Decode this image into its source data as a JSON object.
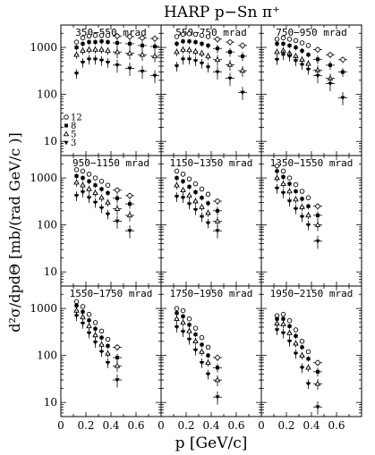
{
  "chart_data": {
    "type": "scatter",
    "title": "HARP p−Sn π⁺",
    "xlabel": "p [GeV/c]",
    "ylabel": "d²σ/dpdΘ [mb/(rad GeV/c )]",
    "x_ticks": [
      "0",
      "0.2",
      "0.4",
      "0.6"
    ],
    "xlim": [
      0,
      0.8
    ],
    "ylim": [
      5,
      3000
    ],
    "yscale": "log",
    "y_ticks": [
      "10",
      "100",
      "1000"
    ],
    "legend": {
      "placement": "left",
      "entries": [
        {
          "label": "12",
          "marker": "circle-open"
        },
        {
          "label": "8",
          "marker": "square-filled"
        },
        {
          "label": "5",
          "marker": "triangle-open"
        },
        {
          "label": "3",
          "marker": "triangle-down-filled"
        }
      ]
    },
    "panels": [
      {
        "label": "350−550 mrad",
        "series": [
          {
            "name": "12",
            "x": [
              0.125,
              0.175,
              0.225,
              0.275,
              0.325,
              0.375,
              0.45,
              0.55,
              0.65,
              0.75
            ],
            "y": [
              1300,
              1600,
              1750,
              1800,
              1800,
              1800,
              1750,
              1700,
              1600,
              1550
            ]
          },
          {
            "name": "8",
            "x": [
              0.125,
              0.175,
              0.225,
              0.275,
              0.325,
              0.375,
              0.45,
              0.55,
              0.65,
              0.75
            ],
            "y": [
              1000,
              1200,
              1300,
              1300,
              1350,
              1300,
              1250,
              1200,
              1100,
              1050
            ]
          },
          {
            "name": "5",
            "x": [
              0.125,
              0.175,
              0.225,
              0.275,
              0.325,
              0.375,
              0.45,
              0.55,
              0.65,
              0.75
            ],
            "y": [
              700,
              850,
              900,
              900,
              900,
              850,
              800,
              750,
              700,
              650
            ]
          },
          {
            "name": "3",
            "x": [
              0.125,
              0.175,
              0.225,
              0.275,
              0.325,
              0.375,
              0.45,
              0.55,
              0.65,
              0.75
            ],
            "y": [
              280,
              480,
              560,
              560,
              530,
              480,
              420,
              360,
              310,
              250
            ]
          }
        ]
      },
      {
        "label": "550−750 mrad",
        "series": [
          {
            "name": "12",
            "x": [
              0.125,
              0.175,
              0.225,
              0.275,
              0.325,
              0.375,
              0.45,
              0.55,
              0.65
            ],
            "y": [
              1700,
              1900,
              1950,
              1900,
              1800,
              1700,
              1500,
              1300,
              1100
            ]
          },
          {
            "name": "8",
            "x": [
              0.125,
              0.175,
              0.225,
              0.275,
              0.325,
              0.375,
              0.45,
              0.55,
              0.65
            ],
            "y": [
              1200,
              1350,
              1350,
              1300,
              1200,
              1100,
              950,
              800,
              650
            ]
          },
          {
            "name": "5",
            "x": [
              0.125,
              0.175,
              0.225,
              0.275,
              0.325,
              0.375,
              0.45,
              0.55,
              0.65
            ],
            "y": [
              800,
              900,
              880,
              820,
              750,
              650,
              550,
              430,
              320
            ]
          },
          {
            "name": "3",
            "x": [
              0.125,
              0.175,
              0.225,
              0.275,
              0.325,
              0.375,
              0.45,
              0.55,
              0.65
            ],
            "y": [
              400,
              560,
              560,
              520,
              460,
              380,
              300,
              220,
              110
            ]
          }
        ]
      },
      {
        "label": "750−950 mrad",
        "series": [
          {
            "name": "12",
            "x": [
              0.125,
              0.175,
              0.225,
              0.275,
              0.325,
              0.375,
              0.45,
              0.55,
              0.65
            ],
            "y": [
              1500,
              1600,
              1500,
              1400,
              1250,
              1100,
              900,
              700,
              550
            ]
          },
          {
            "name": "8",
            "x": [
              0.125,
              0.175,
              0.225,
              0.275,
              0.325,
              0.375,
              0.45,
              0.55,
              0.65
            ],
            "y": [
              1200,
              1200,
              1100,
              1000,
              850,
              700,
              560,
              420,
              300
            ]
          },
          {
            "name": "5",
            "x": [
              0.125,
              0.175,
              0.225,
              0.275,
              0.325,
              0.375,
              0.45,
              0.55
            ],
            "y": [
              800,
              850,
              750,
              650,
              550,
              450,
              330,
              220
            ]
          },
          {
            "name": "3",
            "x": [
              0.125,
              0.175,
              0.225,
              0.275,
              0.325,
              0.375,
              0.45,
              0.55,
              0.65
            ],
            "y": [
              550,
              700,
              650,
              520,
              430,
              340,
              250,
              170,
              85
            ]
          }
        ]
      },
      {
        "label": "950−1150 mrad",
        "series": [
          {
            "name": "12",
            "x": [
              0.125,
              0.175,
              0.225,
              0.275,
              0.325,
              0.375,
              0.45,
              0.55
            ],
            "y": [
              1500,
              1400,
              1200,
              1000,
              850,
              700,
              550,
              420
            ]
          },
          {
            "name": "8",
            "x": [
              0.125,
              0.175,
              0.225,
              0.275,
              0.325,
              0.375,
              0.45,
              0.55
            ],
            "y": [
              1100,
              1000,
              850,
              700,
              580,
              480,
              370,
              280
            ]
          },
          {
            "name": "5",
            "x": [
              0.125,
              0.175,
              0.225,
              0.275,
              0.325,
              0.375,
              0.45,
              0.55
            ],
            "y": [
              800,
              700,
              580,
              480,
              380,
              300,
              220,
              160
            ]
          },
          {
            "name": "3",
            "x": [
              0.125,
              0.175,
              0.225,
              0.275,
              0.325,
              0.375,
              0.45,
              0.55
            ],
            "y": [
              420,
              500,
              380,
              300,
              230,
              170,
              120,
              75
            ]
          }
        ]
      },
      {
        "label": "1150−1350 mrad",
        "series": [
          {
            "name": "12",
            "x": [
              0.125,
              0.175,
              0.225,
              0.275,
              0.325,
              0.375,
              0.45
            ],
            "y": [
              1400,
              1200,
              950,
              750,
              580,
              450,
              320
            ]
          },
          {
            "name": "8",
            "x": [
              0.125,
              0.175,
              0.225,
              0.275,
              0.325,
              0.375,
              0.45
            ],
            "y": [
              1000,
              850,
              650,
              500,
              380,
              290,
              200
            ]
          },
          {
            "name": "5",
            "x": [
              0.125,
              0.175,
              0.225,
              0.275,
              0.325,
              0.375,
              0.45
            ],
            "y": [
              700,
              550,
              420,
              320,
              240,
              180,
              120
            ]
          },
          {
            "name": "3",
            "x": [
              0.125,
              0.175,
              0.225,
              0.275,
              0.325,
              0.375,
              0.45
            ],
            "y": [
              400,
              380,
              280,
              210,
              150,
              110,
              75
            ]
          }
        ]
      },
      {
        "label": "1350−1550 mrad",
        "series": [
          {
            "name": "12",
            "x": [
              0.125,
              0.175,
              0.225,
              0.275,
              0.325,
              0.375,
              0.45
            ],
            "y": [
              1800,
              1400,
              1000,
              720,
              520,
              380,
              250
            ]
          },
          {
            "name": "8",
            "x": [
              0.125,
              0.175,
              0.225,
              0.275,
              0.325,
              0.375,
              0.45
            ],
            "y": [
              1400,
              1050,
              750,
              520,
              360,
              250,
              160
            ]
          },
          {
            "name": "5",
            "x": [
              0.125,
              0.175,
              0.225,
              0.275,
              0.325,
              0.375,
              0.45
            ],
            "y": [
              1000,
              750,
              520,
              350,
              240,
              160,
              100
            ]
          },
          {
            "name": "3",
            "x": [
              0.125,
              0.175,
              0.225,
              0.275,
              0.325,
              0.375,
              0.45
            ],
            "y": [
              600,
              480,
              320,
              220,
              150,
              100,
              45
            ]
          }
        ]
      },
      {
        "label": "1550−1750 mrad",
        "series": [
          {
            "name": "12",
            "x": [
              0.125,
              0.175,
              0.225,
              0.275,
              0.325,
              0.375,
              0.45
            ],
            "y": [
              1400,
              1100,
              750,
              500,
              330,
              220,
              150
            ]
          },
          {
            "name": "8",
            "x": [
              0.125,
              0.175,
              0.225,
              0.275,
              0.325,
              0.375,
              0.45
            ],
            "y": [
              1150,
              850,
              560,
              370,
              240,
              160,
              90
            ]
          },
          {
            "name": "5",
            "x": [
              0.125,
              0.175,
              0.225,
              0.275,
              0.325,
              0.375,
              0.45
            ],
            "y": [
              900,
              650,
              420,
              270,
              170,
              110,
              60
            ]
          },
          {
            "name": "3",
            "x": [
              0.125,
              0.175,
              0.225,
              0.275,
              0.325,
              0.375,
              0.45
            ],
            "y": [
              700,
              480,
              300,
              190,
              120,
              70,
              30
            ]
          }
        ]
      },
      {
        "label": "1750−1950 mrad",
        "series": [
          {
            "name": "12",
            "x": [
              0.125,
              0.175,
              0.225,
              0.275,
              0.325,
              0.375,
              0.45
            ],
            "y": [
              1000,
              900,
              600,
              380,
              240,
              150,
              90
            ]
          },
          {
            "name": "8",
            "x": [
              0.125,
              0.175,
              0.225,
              0.275,
              0.325,
              0.375,
              0.45
            ],
            "y": [
              800,
              680,
              450,
              280,
              170,
              100,
              55
            ]
          },
          {
            "name": "5",
            "x": [
              0.125,
              0.175,
              0.225,
              0.275,
              0.325,
              0.375,
              0.45
            ],
            "y": [
              600,
              500,
              330,
              200,
              120,
              70,
              30
            ]
          },
          {
            "name": "3",
            "x": [
              0.125,
              0.175,
              0.225,
              0.275,
              0.325,
              0.375,
              0.45
            ],
            "y": [
              400,
              320,
              220,
              130,
              70,
              40,
              13
            ]
          }
        ]
      },
      {
        "label": "1950−2150 mrad",
        "series": [
          {
            "name": "12",
            "x": [
              0.125,
              0.175,
              0.225,
              0.275,
              0.325,
              0.375,
              0.45
            ],
            "y": [
              700,
              750,
              550,
              350,
              200,
              120,
              70
            ]
          },
          {
            "name": "8",
            "x": [
              0.125,
              0.175,
              0.225,
              0.275,
              0.325,
              0.375,
              0.45
            ],
            "y": [
              600,
              600,
              420,
              260,
              150,
              85,
              45
            ]
          },
          {
            "name": "5",
            "x": [
              0.125,
              0.175,
              0.225,
              0.275,
              0.325,
              0.375,
              0.45
            ],
            "y": [
              480,
              460,
              300,
              180,
              100,
              55,
              25
            ]
          },
          {
            "name": "3",
            "x": [
              0.125,
              0.175,
              0.225,
              0.275,
              0.325,
              0.375,
              0.45
            ],
            "y": [
              350,
              300,
              200,
              110,
              55,
              25,
              8
            ]
          }
        ]
      }
    ]
  }
}
